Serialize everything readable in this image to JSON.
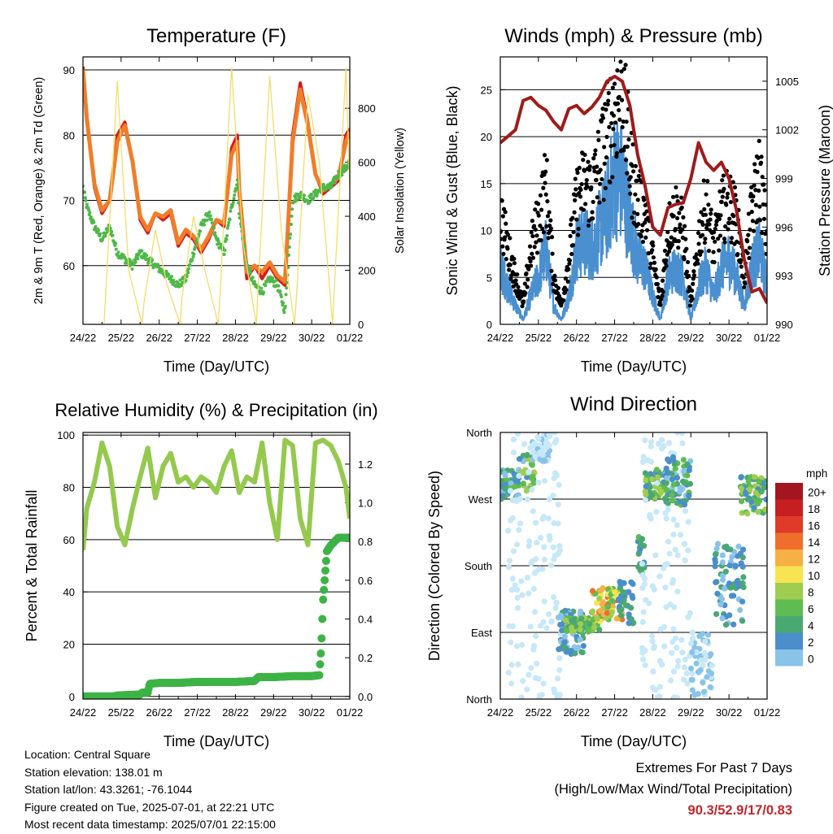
{
  "colors": {
    "t2m": "#d7191c",
    "t9m": "#f07d2a",
    "td": "#4db848",
    "solar": "#f5dc6a",
    "wind": "#4a90d0",
    "gust": "#000000",
    "pressure": "#a01a1a",
    "rh": "#94c94e",
    "rain": "#3db346"
  },
  "speed_colors": [
    "#c6e8f8",
    "#8ac3e8",
    "#4a8ecb",
    "#4aa872",
    "#5ebc52",
    "#9fcd50",
    "#f6e550",
    "#f7b043",
    "#f06e2b",
    "#df3a2a",
    "#c51f22",
    "#a31620"
  ],
  "chart_data": [
    {
      "id": "temperature",
      "type": "line",
      "title": "Temperature (F)",
      "xlabel": "Time (Day/UTC)",
      "ylabel": "2m & 9m T (Red, Orange) & 2m Td (Green)",
      "ylabel2": "Solar Insolation (Yellow)",
      "xticks": [
        "24/22",
        "25/22",
        "26/22",
        "27/22",
        "28/22",
        "29/22",
        "30/22",
        "01/22"
      ],
      "xlim": [
        0,
        7
      ],
      "ylim": [
        51,
        92
      ],
      "ylim2": [
        0,
        990
      ],
      "yticks": [
        60,
        70,
        80,
        90
      ],
      "yticks2": [
        0,
        200,
        400,
        600,
        800
      ],
      "grid": true,
      "series": [
        {
          "key": "t2m",
          "x": [
            0,
            0.1,
            0.3,
            0.5,
            0.7,
            0.9,
            1.1,
            1.3,
            1.5,
            1.7,
            1.9,
            2.1,
            2.3,
            2.5,
            2.7,
            2.9,
            3.1,
            3.3,
            3.5,
            3.7,
            3.9,
            4.05,
            4.1,
            4.3,
            4.5,
            4.7,
            4.9,
            5.1,
            5.3,
            5.5,
            5.7,
            5.9,
            6.1,
            6.3,
            6.5,
            6.7,
            6.9,
            7
          ],
          "y": [
            90.5,
            83,
            72,
            68,
            70,
            80,
            82,
            76,
            67,
            65,
            68,
            67,
            68,
            63,
            65,
            64,
            62,
            64,
            67,
            66,
            78,
            80,
            71,
            58,
            60,
            58,
            60,
            58,
            57,
            80,
            88,
            82,
            74,
            71,
            72,
            73,
            80,
            81
          ]
        },
        {
          "key": "t9m",
          "x": [
            0,
            0.1,
            0.3,
            0.5,
            0.7,
            0.9,
            1.1,
            1.3,
            1.5,
            1.7,
            1.9,
            2.1,
            2.3,
            2.5,
            2.7,
            2.9,
            3.1,
            3.3,
            3.5,
            3.7,
            3.9,
            4.05,
            4.1,
            4.3,
            4.5,
            4.7,
            4.9,
            5.1,
            5.3,
            5.5,
            5.7,
            5.9,
            6.1,
            6.3,
            6.5,
            6.7,
            6.9,
            7
          ],
          "y": [
            90,
            82.5,
            72.5,
            68.5,
            70,
            79,
            81.5,
            76,
            67.5,
            65.5,
            68,
            67.5,
            68.5,
            63.5,
            65.5,
            64.5,
            62.5,
            64.5,
            67,
            66.5,
            77,
            79,
            71.5,
            59,
            60,
            59,
            60.5,
            58.5,
            57.5,
            79,
            87,
            81.5,
            74,
            71.5,
            72.5,
            73.5,
            79,
            80.5
          ]
        },
        {
          "key": "td",
          "x": [
            0,
            0.1,
            0.3,
            0.5,
            0.7,
            0.9,
            1.1,
            1.3,
            1.5,
            1.7,
            1.9,
            2.1,
            2.3,
            2.5,
            2.7,
            2.9,
            3.1,
            3.3,
            3.5,
            3.7,
            3.9,
            4.05,
            4.1,
            4.3,
            4.5,
            4.7,
            4.9,
            5.1,
            5.3,
            5.5,
            5.7,
            5.9,
            6.1,
            6.3,
            6.5,
            6.7,
            6.9,
            7
          ],
          "y": [
            72,
            69,
            66,
            64,
            66,
            62,
            61,
            60,
            62,
            61,
            60,
            59,
            58,
            57,
            58,
            62,
            66,
            68,
            64,
            62,
            69,
            73,
            68,
            60,
            57,
            56,
            58,
            57,
            53,
            70,
            71,
            70,
            71,
            72,
            72,
            74,
            75,
            76
          ]
        },
        {
          "key": "solar",
          "axis": "y2",
          "x": [
            0,
            0.03,
            0.35,
            0.55,
            0.6,
            0.9,
            1.2,
            1.55,
            1.6,
            1.9,
            2.2,
            2.55,
            2.6,
            2.9,
            3.2,
            3.55,
            3.6,
            3.9,
            4.2,
            4.55,
            4.6,
            4.9,
            5.2,
            5.55,
            5.6,
            5.9,
            6.2,
            6.55,
            6.6,
            6.9,
            7
          ],
          "y": [
            0,
            0,
            0,
            0,
            120,
            900,
            200,
            0,
            80,
            350,
            150,
            0,
            100,
            400,
            200,
            0,
            120,
            950,
            300,
            0,
            150,
            920,
            350,
            0,
            100,
            850,
            600,
            0,
            150,
            950,
            500
          ]
        }
      ]
    },
    {
      "id": "winds",
      "type": "line",
      "title": "Winds (mph) & Pressure (mb)",
      "xlabel": "Time (Day/UTC)",
      "ylabel": "Sonic Wind & Gust (Blue, Black)",
      "ylabel2": "Station Pressure (Maroon)",
      "xticks": [
        "24/22",
        "25/22",
        "26/22",
        "27/22",
        "28/22",
        "29/22",
        "30/22",
        "01/22"
      ],
      "xlim": [
        0,
        7
      ],
      "ylim": [
        0,
        28.5
      ],
      "ylim2": [
        990,
        1006.5
      ],
      "yticks": [
        0,
        5,
        10,
        15,
        20,
        25
      ],
      "yticks2": [
        990,
        993,
        996,
        999,
        1002,
        1005
      ],
      "grid": true,
      "series": [
        {
          "key": "wind",
          "x": [
            0,
            0.2,
            0.4,
            0.6,
            0.8,
            1.0,
            1.2,
            1.4,
            1.6,
            1.8,
            2.0,
            2.2,
            2.4,
            2.6,
            2.8,
            3.0,
            3.2,
            3.4,
            3.6,
            3.8,
            4.0,
            4.2,
            4.4,
            4.6,
            4.8,
            5.0,
            5.2,
            5.4,
            5.6,
            5.8,
            6.0,
            6.2,
            6.4,
            6.6,
            6.8,
            7
          ],
          "y": [
            6,
            4,
            2,
            0.5,
            3,
            5,
            8,
            2,
            0.5,
            3,
            8,
            9,
            8,
            10,
            12,
            16,
            15,
            11,
            7,
            6,
            3,
            0.5,
            5,
            6,
            5,
            0.5,
            4,
            6,
            3,
            6,
            7,
            5,
            2,
            6,
            8,
            4
          ]
        },
        {
          "key": "gust",
          "x": [
            0,
            0.2,
            0.4,
            0.6,
            0.8,
            1.0,
            1.2,
            1.4,
            1.6,
            1.8,
            2.0,
            2.2,
            2.4,
            2.6,
            2.8,
            3.0,
            3.2,
            3.4,
            3.6,
            3.8,
            4.0,
            4.2,
            4.4,
            4.6,
            4.8,
            5.0,
            5.2,
            5.4,
            5.6,
            5.8,
            6.0,
            6.2,
            6.4,
            6.6,
            6.8,
            7
          ],
          "y": [
            12,
            8,
            5,
            2,
            8,
            11,
            15,
            5,
            2,
            7,
            13,
            15,
            14,
            17,
            20,
            23,
            25,
            17,
            13,
            12,
            7,
            2,
            10,
            12,
            10,
            2,
            9,
            13,
            8,
            12,
            13,
            11,
            5,
            12,
            16,
            9
          ]
        },
        {
          "key": "pressure",
          "axis": "y2",
          "x": [
            0,
            0.2,
            0.4,
            0.6,
            0.8,
            1.0,
            1.2,
            1.4,
            1.6,
            1.8,
            2.0,
            2.2,
            2.4,
            2.6,
            2.8,
            3.0,
            3.2,
            3.4,
            3.6,
            3.8,
            4.0,
            4.2,
            4.4,
            4.6,
            4.8,
            5.0,
            5.2,
            5.4,
            5.6,
            5.8,
            6.0,
            6.2,
            6.4,
            6.6,
            6.8,
            7
          ],
          "y": [
            1001.2,
            1001.6,
            1002,
            1003.8,
            1004,
            1003.5,
            1003.2,
            1002.5,
            1002,
            1003.3,
            1003.5,
            1003,
            1003.4,
            1004,
            1005,
            1005.3,
            1005,
            1003.5,
            1000.5,
            998.5,
            996,
            995.5,
            997.2,
            997.4,
            997.5,
            999,
            1001.2,
            1000,
            999.5,
            1000,
            999,
            997,
            994,
            992,
            992.2,
            991.3
          ]
        }
      ]
    },
    {
      "id": "humidity",
      "type": "line",
      "title": "Relative Humidity (%) & Precipitation (in)",
      "xlabel": "Time (Day/UTC)",
      "ylabel": "Percent & Total Rainfall",
      "xticks": [
        "24/22",
        "25/22",
        "26/22",
        "27/22",
        "28/22",
        "29/22",
        "30/22",
        "01/22"
      ],
      "xlim": [
        0,
        7
      ],
      "ylim": [
        -1,
        101
      ],
      "ylim2": [
        -0.0135,
        1.3635
      ],
      "yticks": [
        0,
        20,
        40,
        60,
        80,
        100
      ],
      "yticks2": [
        0.0,
        0.2,
        0.4,
        0.6,
        0.8,
        1.0,
        1.2
      ],
      "grid": true,
      "series": [
        {
          "key": "rh",
          "x": [
            0,
            0.1,
            0.3,
            0.5,
            0.7,
            0.9,
            1.1,
            1.3,
            1.5,
            1.7,
            1.9,
            2.1,
            2.3,
            2.5,
            2.7,
            2.9,
            3.1,
            3.3,
            3.5,
            3.7,
            3.9,
            4.1,
            4.3,
            4.5,
            4.7,
            4.9,
            5.1,
            5.3,
            5.5,
            5.7,
            5.9,
            6.1,
            6.3,
            6.5,
            6.7,
            6.9,
            7
          ],
          "y": [
            56,
            72,
            82,
            97,
            88,
            65,
            58,
            72,
            84,
            95,
            76,
            88,
            93,
            82,
            84,
            80,
            84,
            82,
            78,
            88,
            94,
            78,
            84,
            82,
            97,
            74,
            60,
            98,
            96,
            68,
            58,
            97,
            98,
            96,
            90,
            80,
            68
          ]
        },
        {
          "key": "rain",
          "axis": "y2",
          "x": [
            0,
            0.8,
            0.9,
            1.5,
            1.55,
            1.7,
            1.75,
            2.0,
            2.5,
            3.0,
            3.5,
            4.0,
            4.5,
            4.6,
            5.0,
            5.5,
            6.0,
            6.2,
            6.25,
            6.3,
            6.4,
            6.5,
            6.6,
            6.7,
            7
          ],
          "y": [
            0,
            0,
            0.005,
            0.01,
            0.02,
            0.02,
            0.065,
            0.07,
            0.07,
            0.075,
            0.075,
            0.075,
            0.08,
            0.1,
            0.1,
            0.105,
            0.105,
            0.11,
            0.25,
            0.5,
            0.75,
            0.78,
            0.8,
            0.82,
            0.82
          ]
        }
      ]
    },
    {
      "id": "direction",
      "type": "scatter",
      "title": "Wind Direction",
      "xlabel": "Time (Day/UTC)",
      "ylabel": "Direction (Colored By Speed)",
      "xticks": [
        "24/22",
        "25/22",
        "26/22",
        "27/22",
        "28/22",
        "29/22",
        "30/22",
        "01/22"
      ],
      "xlim": [
        0,
        7
      ],
      "ylim": [
        0,
        360
      ],
      "yticks": [
        {
          "value": 0,
          "label": "North"
        },
        {
          "value": 90,
          "label": "East"
        },
        {
          "value": 180,
          "label": "South"
        },
        {
          "value": 270,
          "label": "West"
        },
        {
          "value": 360,
          "label": "North"
        }
      ],
      "grid": true,
      "legend": {
        "title": "mph",
        "labels": [
          "20+",
          "18",
          "16",
          "14",
          "12",
          "10",
          "8",
          "6",
          "4",
          "2",
          "0"
        ],
        "position": "right"
      },
      "clusters": [
        {
          "x": [
            0.0,
            0.5
          ],
          "y": [
            270,
            310
          ],
          "speed": [
            2,
            10
          ]
        },
        {
          "x": [
            0.5,
            0.9
          ],
          "y": [
            280,
            330
          ],
          "speed": [
            3,
            12
          ]
        },
        {
          "x": [
            0.8,
            1.3
          ],
          "y": [
            320,
            360
          ],
          "speed": [
            0,
            3
          ]
        },
        {
          "x": [
            0.2,
            1.6
          ],
          "y": [
            0,
            360
          ],
          "speed": [
            0,
            2
          ]
        },
        {
          "x": [
            1.5,
            2.2
          ],
          "y": [
            60,
            120
          ],
          "speed": [
            2,
            8
          ]
        },
        {
          "x": [
            1.7,
            2.6
          ],
          "y": [
            90,
            110
          ],
          "speed": [
            6,
            12
          ]
        },
        {
          "x": [
            2.4,
            3.2
          ],
          "y": [
            105,
            150
          ],
          "speed": [
            8,
            17
          ]
        },
        {
          "x": [
            3.1,
            3.5
          ],
          "y": [
            100,
            160
          ],
          "speed": [
            4,
            8
          ]
        },
        {
          "x": [
            3.6,
            3.8
          ],
          "y": [
            170,
            220
          ],
          "speed": [
            5,
            9
          ]
        },
        {
          "x": [
            3.8,
            4.4
          ],
          "y": [
            270,
            310
          ],
          "speed": [
            5,
            12
          ]
        },
        {
          "x": [
            3.7,
            5.0
          ],
          "y": [
            0,
            360
          ],
          "speed": [
            0,
            2
          ]
        },
        {
          "x": [
            4.3,
            5.0
          ],
          "y": [
            260,
            330
          ],
          "speed": [
            3,
            10
          ]
        },
        {
          "x": [
            5.0,
            5.6
          ],
          "y": [
            0,
            90
          ],
          "speed": [
            0,
            4
          ]
        },
        {
          "x": [
            5.6,
            6.4
          ],
          "y": [
            100,
            210
          ],
          "speed": [
            3,
            8
          ]
        },
        {
          "x": [
            6.3,
            7.0
          ],
          "y": [
            250,
            300
          ],
          "speed": [
            5,
            12
          ]
        }
      ]
    }
  ],
  "footer": {
    "location": "Location: Central Square",
    "elevation": "Station elevation: 138.01 m",
    "latlon": "Station lat/lon: 43.3261; -76.1044",
    "created": "Figure created on Tue, 2025-07-01, at 22:21 UTC",
    "recent": "Most recent data timestamp: 2025/07/01 22:15:00"
  },
  "extremes": {
    "title": "Extremes For Past 7 Days",
    "subtitle": "(High/Low/Max Wind/Total Precipitation)",
    "values": "90.3/52.9/17/0.83"
  }
}
